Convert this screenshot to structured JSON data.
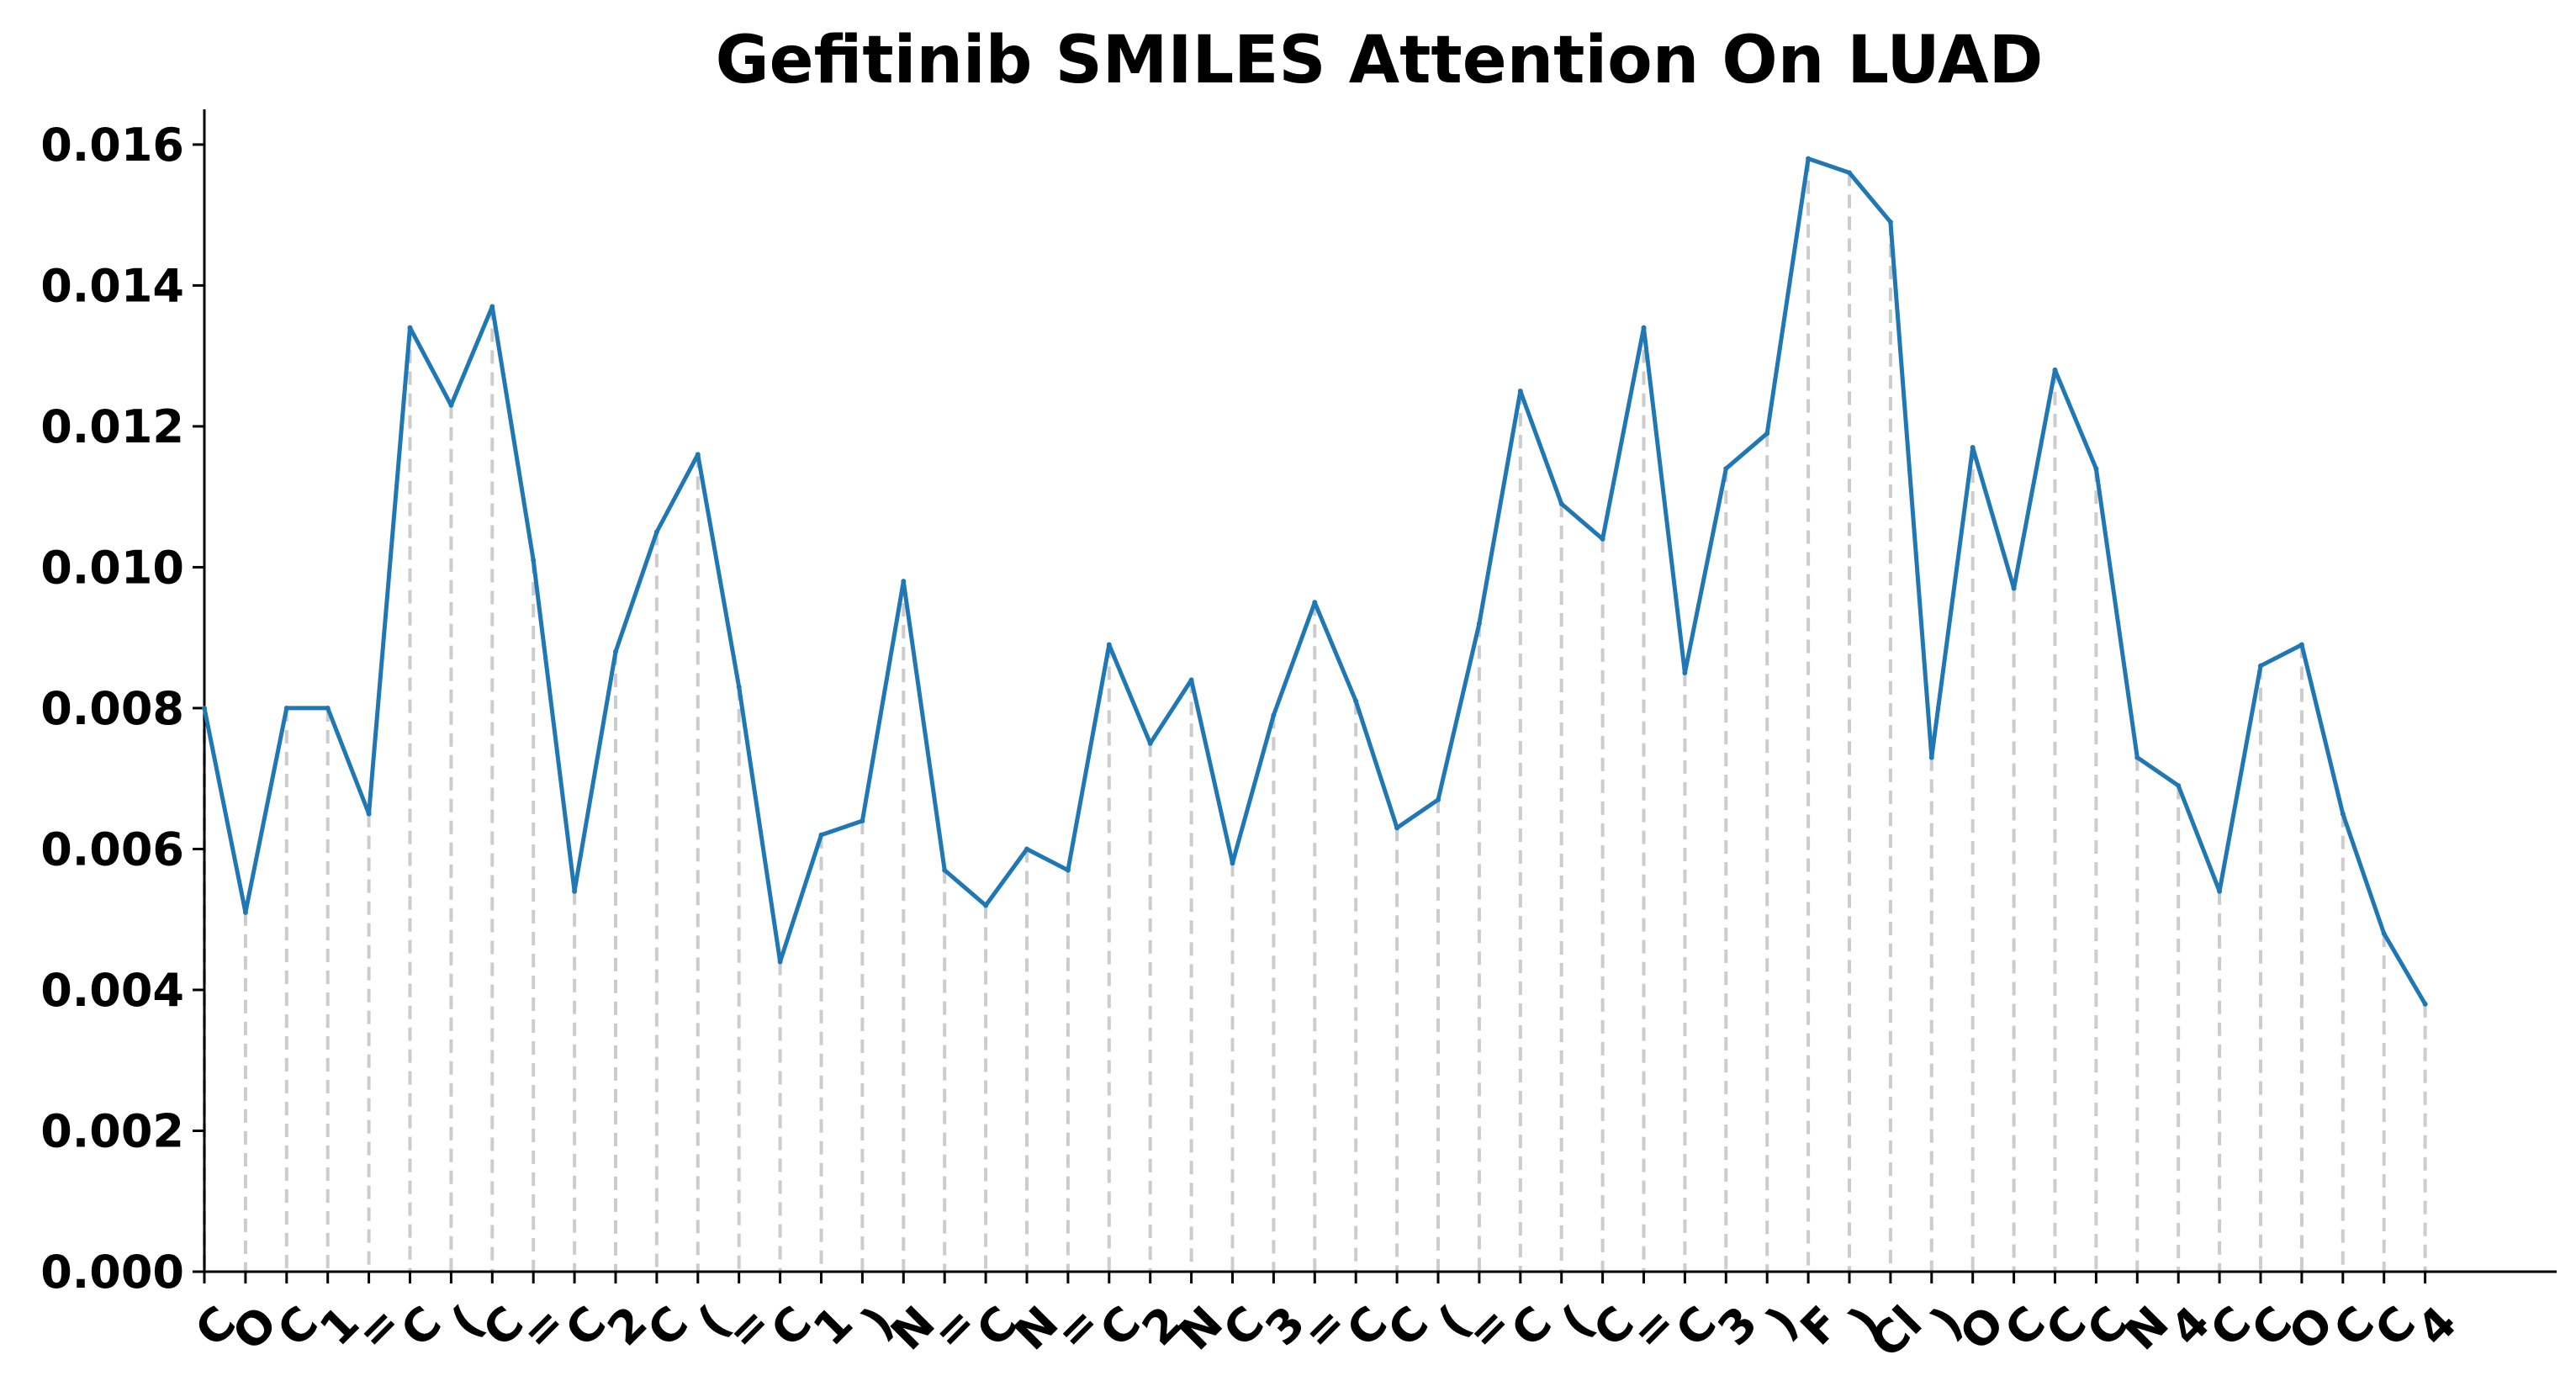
{
  "chart_data": {
    "type": "line",
    "title": "Gefitinib SMILES Attention On LUAD",
    "xlabel": "",
    "ylabel": "",
    "ylim": [
      0,
      0.0165
    ],
    "yticks": [
      0.0,
      0.002,
      0.004,
      0.006,
      0.008,
      0.01,
      0.012,
      0.014,
      0.016
    ],
    "ytick_labels": [
      "0.000",
      "0.002",
      "0.004",
      "0.006",
      "0.008",
      "0.010",
      "0.012",
      "0.014",
      "0.016"
    ],
    "grid": "vertical dashed drop-lines at each token",
    "categories": [
      "C",
      "O",
      "C",
      "1",
      "=",
      "C",
      "(",
      "C",
      "=",
      "C",
      "2",
      "C",
      "(",
      "=",
      "C",
      "1",
      ")",
      "N",
      "=",
      "C",
      "N",
      "=",
      "C",
      "2",
      "N",
      "C",
      "3",
      "=",
      "C",
      "C",
      "(",
      "=",
      "C",
      "(",
      "C",
      "=",
      "C",
      "3",
      ")",
      "F",
      ")",
      "Cl",
      ")",
      "O",
      "C",
      "C",
      "C",
      "N",
      "4",
      "C",
      "C",
      "O",
      "C",
      "C",
      "4"
    ],
    "values": [
      0.008,
      0.0051,
      0.008,
      0.008,
      0.0065,
      0.0134,
      0.0123,
      0.0137,
      0.0101,
      0.0054,
      0.0088,
      0.0105,
      0.0116,
      0.0083,
      0.0044,
      0.0062,
      0.0064,
      0.0098,
      0.0057,
      0.0052,
      0.006,
      0.0057,
      0.0089,
      0.0075,
      0.0084,
      0.0058,
      0.0079,
      0.0095,
      0.0081,
      0.0063,
      0.0067,
      0.0092,
      0.0125,
      0.0109,
      0.0104,
      0.0134,
      0.0085,
      0.0114,
      0.0119,
      0.0158,
      0.0156,
      0.0149,
      0.0073,
      0.0117,
      0.0097,
      0.0128,
      0.0114,
      0.0073,
      0.0069,
      0.0054,
      0.0086,
      0.0089,
      0.0065,
      0.0048,
      0.0038
    ],
    "colors": {
      "line": "#1f77b4",
      "droplines": "#cccccc",
      "axis": "#000000"
    }
  }
}
